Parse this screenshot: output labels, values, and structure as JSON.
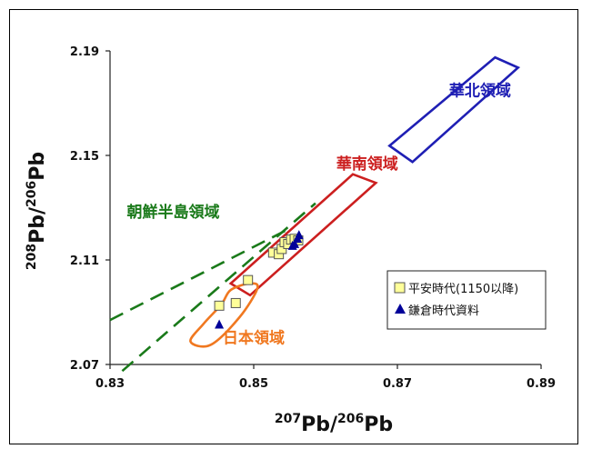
{
  "chart_data": {
    "type": "scatter",
    "title": "",
    "xlabel": {
      "sup1": "207",
      "base1": "Pb/",
      "sup2": "206",
      "base2": "Pb"
    },
    "ylabel": {
      "sup1": "208",
      "base1": "Pb/",
      "sup2": "206",
      "base2": "Pb"
    },
    "xlim": [
      0.83,
      0.89
    ],
    "ylim": [
      2.07,
      2.19
    ],
    "x_ticks": [
      0.83,
      0.85,
      0.87,
      0.89
    ],
    "x_tick_labels": [
      "0.83",
      "0.85",
      "0.87",
      "0.89"
    ],
    "y_ticks": [
      2.07,
      2.11,
      2.15,
      2.19
    ],
    "y_tick_labels": [
      "2.07",
      "2.11",
      "2.15",
      "2.19"
    ],
    "grid": false,
    "legend_position": "lower-right",
    "series": [
      {
        "name": "平安時代(1150以降)",
        "marker": "square",
        "color": "#ffff99",
        "stroke": "#555555",
        "points": [
          [
            0.8452,
            2.0925
          ],
          [
            0.8475,
            2.0935
          ],
          [
            0.8492,
            2.1023
          ],
          [
            0.8527,
            2.1128
          ],
          [
            0.8535,
            2.1122
          ],
          [
            0.8539,
            2.1142
          ],
          [
            0.8543,
            2.1168
          ],
          [
            0.8548,
            2.1161
          ],
          [
            0.8552,
            2.1178
          ],
          [
            0.8557,
            2.1181
          ],
          [
            0.8562,
            2.1175
          ]
        ]
      },
      {
        "name": "鎌倉時代資料",
        "marker": "triangle",
        "color": "#000099",
        "points": [
          [
            0.8452,
            2.0855
          ],
          [
            0.8554,
            2.1156
          ],
          [
            0.8557,
            2.1163
          ],
          [
            0.8561,
            2.1183
          ],
          [
            0.8563,
            2.1197
          ]
        ]
      }
    ],
    "regions": [
      {
        "name": "華北領域",
        "color": "#1f1fb4",
        "shape": "polygon",
        "vertices": [
          [
            0.8689,
            2.1537
          ],
          [
            0.8836,
            2.1875
          ],
          [
            0.8868,
            2.1836
          ],
          [
            0.8721,
            2.1475
          ]
        ],
        "label_anchor": [
          0.8815,
          2.1727
        ]
      },
      {
        "name": "華南領域",
        "color": "#cc1f1f",
        "shape": "polygon",
        "vertices": [
          [
            0.8468,
            2.101
          ],
          [
            0.8638,
            2.1428
          ],
          [
            0.867,
            2.1395
          ],
          [
            0.8495,
            2.0965
          ]
        ],
        "label_anchor": [
          0.8658,
          2.1447
        ]
      },
      {
        "name": "日本領域",
        "color": "#f07820",
        "shape": "blob",
        "vertices": [
          [
            0.843,
            2.0855
          ],
          [
            0.8455,
            2.093
          ],
          [
            0.8468,
            2.0985
          ],
          [
            0.8495,
            2.101
          ],
          [
            0.8505,
            2.099
          ],
          [
            0.848,
            2.088
          ],
          [
            0.844,
            2.0775
          ],
          [
            0.8412,
            2.0788
          ]
        ],
        "label_anchor": [
          0.85,
          2.0781
        ]
      },
      {
        "name": "朝鮮半島領域",
        "color": "#1a7a1a",
        "shape": "dashed-lines",
        "lines": [
          [
            [
              0.83,
              2.087
            ],
            [
              0.8547,
              2.1216
            ]
          ],
          [
            [
              0.8317,
              2.0675
            ],
            [
              0.8586,
              2.1317
            ]
          ]
        ],
        "label_anchor": [
          0.8388,
          2.1264
        ]
      }
    ]
  }
}
